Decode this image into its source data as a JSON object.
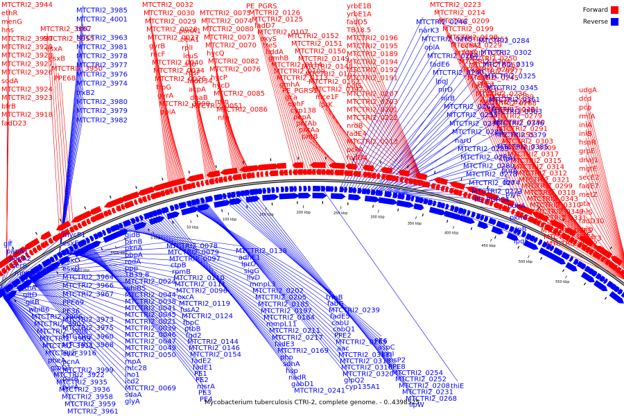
{
  "title": "Mycobacterium tuberculosis CTRI-2, complete genome. - 0..4398525",
  "legend": [
    {
      "label": "Forward",
      "color": "#ff0000"
    },
    {
      "label": "Reverse",
      "color": "#0000ff"
    }
  ],
  "colors": {
    "forward": "#ff0000",
    "reverse": "#0000ff",
    "backbone": "#777777"
  },
  "bp_ticks": [
    "4350 kbp",
    "4400 kbp",
    "0 kbp",
    "50 kbp",
    "100 kbp",
    "150 kbp",
    "200 kbp",
    "250 kbp",
    "300 kbp",
    "350 kbp",
    "400 kbp",
    "450 kbp",
    "500 kbp",
    "550 kbp"
  ],
  "forward_labels": [
    "MTCTRI2_3944",
    "ethR",
    "menG",
    "hns",
    "MTCTRI2_3930",
    "MTCTRI2_3929",
    "MTCTRI2_3928",
    "MTCTRI2_3927",
    "MTCTRI2_3926",
    "sodA",
    "MTCTRI2_3924",
    "MTCTRI2_3923",
    "bfrB",
    "MTCTRI2_3918",
    "fadD23",
    "MTCTRI2_3957",
    "MTCTRI2_3955",
    "esxA",
    "esxB",
    "MTCTRI2_3950",
    "PPE68",
    "MTCTRI2_0032",
    "MTCTRI2_0030",
    "MTCTRI2_0029",
    "MTCTRI2_0028",
    "MTCTRI2_0027",
    "gyrB",
    "recF",
    "MTCTRI2_0040",
    "MTCTRI2_0034",
    "MTCTRI2_0026",
    "trpG",
    "gyrA",
    "MTCTRI2_3990",
    "ppiA",
    "ponA1",
    "celA1",
    "rplI",
    "leuS",
    "ssb",
    "rpsF",
    "fadD34",
    "acpA",
    "dnaB",
    "MTCTRI2_0051",
    "MTCTRI2_0075",
    "MTCTRI2_0074",
    "MTCTRI2_0080",
    "MTCTRI2_0073",
    "MTCTRI2_0070",
    "hycQ",
    "MTCTRI2_0082",
    "MTCTRI2_0076",
    "hycP",
    "hycD",
    "MTCTRI2_0085",
    "mtn",
    "MTCTRI2_0086",
    "nrp",
    "PE_PGRS",
    "MTCTRI2_0126",
    "MTCTRI2_0125",
    "fadD7",
    "MTCTRI2_0107",
    "oxyS",
    "treS",
    "hddA",
    "gmhB",
    "MTCTRI2_0114",
    "MTCTRI2_0109",
    "MTCTRI2_0113",
    "gmhA",
    "PE_PGRS1",
    "gca",
    "ephF",
    "cyp138",
    "pepA",
    "pntAb",
    "pntAa",
    "pntB",
    "MTCTRI2_0152",
    "MTCTRI2_0151",
    "MTCTRI2_0150",
    "MTCTRI2_0149",
    "MTCTRI2_0148",
    "MTCTRI2_0167",
    "MTCTRI2_0162",
    "MTCTRI2_0147",
    "mce1F",
    "lprK",
    "yrbE1B",
    "yrbE1A",
    "fadD5",
    "TB18.5",
    "MTCTRI2_0196",
    "MTCTRI2_0195",
    "MTCTRI2_0189",
    "MTCTRI2_0194",
    "MTCTRI2_0192",
    "MTCTRI2_0191",
    "bglS",
    "MTCTRI2_0207",
    "MTCTRI2_0203",
    "MTCTRI2_0201",
    "MTCTRI2_0222",
    "nrdB",
    "fadE4",
    "MTCTRI2_0213",
    "pckA",
    "fadD4",
    "MTCTRI2_0223",
    "MTCTRI2_0214",
    "MTCTRI2_0209",
    "MTCTRI2_0199",
    "MTCTRI2_0198",
    "MTCTRI2_0229",
    "MTCTRI2_0220",
    "MTCTRI2_0204",
    "MTCTRI2_0200",
    "MTCTRI2_0245",
    "fadA2",
    "MTCTRI2_0236",
    "MTCTRI2_0244",
    "MTCTRI2_0243",
    "MTCTRI2_0251",
    "echA1",
    "lipC",
    "MTCTRI2_0250",
    "MTCTRI2_0262",
    "MTCTRI2_0277",
    "fadD2",
    "PPE3",
    "mycP3",
    "MTCTRI2_0289",
    "MTCTRI2_0288",
    "MTCTRI2_0281",
    "MTCTRI2_0279",
    "MTCTRI2_0290",
    "MTCTRI2_0291",
    "PE_PGRS5",
    "MTCTRI2_0303",
    "MTCTRI2_0309",
    "MTCTRI2_0317",
    "MTCTRI2_0315",
    "MTCTRI2_0314",
    "MTCTRI2_0312",
    "MTCTRI2_0321",
    "MTCTRI2_0299",
    "MTCTRI2_0318",
    "MTCTRI2_0343",
    "MTCTRI2_0310",
    "MTCTRI2_0347",
    "MTCTRI2_0331",
    "dnaK",
    "MTCTRI2_0365",
    "MTCTRI2_0371",
    "MTCTRI2_0352",
    "udgA",
    "dcd",
    "pcp",
    "rmlA",
    "iniA",
    "iniB",
    "hspR",
    "grpE",
    "dnaJ1",
    "mgtE",
    "secE2",
    "fadE7",
    "metZ",
    "pta",
    "thiS",
    "fadD30",
    "thiD",
    "mutT3"
  ],
  "reverse_labels": [
    "MTCTRI2_3985",
    "MTCTRI2_4001",
    "trxC",
    "MTCTRI2_3963",
    "MTCTRI2_3981",
    "MTCTRI2_3978",
    "MTCTRI2_3977",
    "MTCTRI2_3976",
    "MTCTRI2_3974",
    "trxB2",
    "MTCTRI2_3980",
    "MTCTRI2_3979",
    "MTCTRI2_3982",
    "glf",
    "papA1",
    "papA2",
    "serS",
    "mmpL8",
    "pks2",
    "ethA",
    "gltD",
    "gltB",
    "whiB6",
    "MTCTRI2_3906",
    "MTCTRI2_3907",
    "MTCTRI2_3908",
    "MTCTRI2_3909",
    "MTCTRI2_3911",
    "MTCTRI2_3916",
    "pheA",
    "glpQ1",
    "MTCTRI2_3922",
    "MTCTRI2_3935",
    "MTCTRI2_3936",
    "MTCTRI2_3958",
    "MTCTRI2_3959",
    "MTCTRI2_3961",
    "mycP1",
    "esxE",
    "mycP2",
    "esxC",
    "esxD",
    "MTCTRI2_3964",
    "MTCTRI2_3966",
    "MTCTRI2_3967",
    "PPE69",
    "PE36",
    "MTCTRI2_3973",
    "MTCTRI2_3975",
    "MTCTRI2_3960",
    "MTCTRI2_3968",
    "esxF",
    "pcnA",
    "MTCTRI2_3999",
    "parB",
    "parA",
    "gidB",
    "pknB",
    "pknA",
    "pbpA",
    "rodA",
    "ppp",
    "TB39.8",
    "MTCTRI2_0024",
    "whiB5",
    "MTCTRI2_0044",
    "MTCTRI2_0038",
    "MTCTRI2_0041",
    "MTCTRI2_0045",
    "MTCTRI2_0021",
    "MTCTRI2_0039",
    "MTCTRI2_0046",
    "MTCTRI2_0047",
    "MTCTRI2_0049",
    "MTCTRI2_0050",
    "rnpA",
    "mtc28",
    "ino1",
    "icd2",
    "MTCTRI2_0069",
    "sdaA",
    "glyA",
    "MTCTRI2_0078",
    "MTCTRI2_0079",
    "MTCTRI2_0097",
    "ctpB",
    "rpmB",
    "MTCTRI2_0110",
    "MTCTRI2_0111",
    "MTCTRI2_0096",
    "oxcA",
    "MTCTRI2_0119",
    "fusA2",
    "MTCTRI2_0124",
    "fbpC",
    "ptbB",
    "fgd2",
    "MTCTRI2_0144",
    "MTCTRI2_0146",
    "MTCTRI2_0154",
    "fadE2",
    "fadE1",
    "PE1",
    "PE2",
    "msrA",
    "PE3",
    "PE4",
    "MTCTRI2_0138",
    "adhE1",
    "lprO",
    "sigG",
    "ilvD",
    "mmpL3",
    "MTCTRI2_0202",
    "MTCTRI2_0205",
    "MTCTRI2_0185",
    "MTCTRI2_0197",
    "MTCTRI2_0184",
    "mmpL11",
    "MTCTRI2_0211",
    "MTCTRI2_0217",
    "fadE3",
    "MTCTRI2_0169",
    "php",
    "sdhA",
    "hsp",
    "nadR",
    "gabD1",
    "MTCTRI2_0241",
    "trmB",
    "fabG",
    "MTCTRI2_0239",
    "fadE5",
    "cobU",
    "cobQ1",
    "PPE2",
    "MTCTRI2_0263",
    "aac",
    "MTCTRI2_0311",
    "MTCTRI2_0313",
    "MTCTRI2_0316",
    "MTCTRI2_0320",
    "glpQ2",
    "cyp135A1",
    "PE6",
    "aspC",
    "lpqI",
    "ansP2",
    "PPE8",
    "MTCTRI2_0254",
    "MTCTRI2_0252",
    "MTCTRI2_0208",
    "MTCTRI2_0231",
    "MTCTRI2_0268",
    "lipW",
    "MTCTRI2_0246",
    "narK3",
    "MTCTRI2_0265",
    "oplA",
    "MTCTRI2_0264",
    "fadE6",
    "MTCTRI2_0240",
    "lpqJ",
    "nirD",
    "nirB",
    "MTCTRI2_0269",
    "MTCTRI2_0255",
    "MTCTRI2_0270",
    "MTCTRI2_0285",
    "narU",
    "MTCTRI2_0283",
    "MTCTRI2_0282",
    "MTCTRI2_0280",
    "MTCTRI2_0278",
    "MTCTRI2_0274",
    "MTCTRI2_0273",
    "PE_PGRS4",
    "MTCTRI2_0284",
    "MTCTRI2_0302",
    "MTCTRI2_0319",
    "MTCTRI2_0325",
    "MTCTRI2_0345",
    "MTCTRI2_0361",
    "MTCTRI2_0363",
    "MTCTRI2_0346",
    "MTCTRI2_0379",
    "MTCTRI2_0385",
    "ctpH",
    "purA",
    "fba",
    "pyrE",
    "ndhA",
    "pknG",
    "clpB",
    "lpqK",
    "thiE"
  ]
}
